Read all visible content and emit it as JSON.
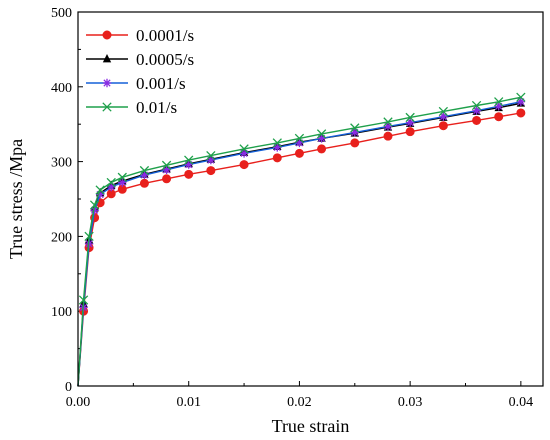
{
  "chart_data": {
    "type": "line",
    "title": "",
    "xlabel": "True strain",
    "ylabel": "True stress  /Mpa",
    "xlim": [
      0.0,
      0.042
    ],
    "ylim": [
      0,
      500
    ],
    "xticks": [
      0.0,
      0.01,
      0.02,
      0.03,
      0.04
    ],
    "xtick_labels": [
      "0.00",
      "0.01",
      "0.02",
      "0.03",
      "0.04"
    ],
    "yticks": [
      0,
      100,
      200,
      300,
      400,
      500
    ],
    "ytick_labels": [
      "0",
      "100",
      "200",
      "300",
      "400",
      "500"
    ],
    "grid": false,
    "legend_position": "top-left",
    "series": [
      {
        "name": "0.0001/s",
        "color": "#e8201c",
        "marker": "circle",
        "x": [
          0.0,
          0.0005,
          0.001,
          0.0015,
          0.002,
          0.003,
          0.004,
          0.006,
          0.008,
          0.01,
          0.012,
          0.015,
          0.018,
          0.02,
          0.022,
          0.025,
          0.028,
          0.03,
          0.033,
          0.036,
          0.038,
          0.04
        ],
        "values": [
          0,
          100,
          185,
          225,
          245,
          257,
          263,
          271,
          277,
          283,
          288,
          296,
          305,
          311,
          317,
          325,
          334,
          340,
          348,
          355,
          360,
          365
        ]
      },
      {
        "name": "0.0005/s",
        "color": "#000000",
        "marker": "triangle",
        "x": [
          0.0,
          0.0005,
          0.001,
          0.0015,
          0.002,
          0.003,
          0.004,
          0.006,
          0.008,
          0.01,
          0.012,
          0.015,
          0.018,
          0.02,
          0.022,
          0.025,
          0.028,
          0.03,
          0.033,
          0.036,
          0.038,
          0.04
        ],
        "values": [
          0,
          110,
          195,
          238,
          258,
          268,
          274,
          283,
          290,
          297,
          303,
          312,
          320,
          326,
          331,
          338,
          346,
          351,
          359,
          367,
          372,
          378
        ]
      },
      {
        "name": "0.001/s",
        "color": "#1560d8",
        "marker": "asterisk",
        "x": [
          0.0,
          0.0005,
          0.001,
          0.0015,
          0.002,
          0.003,
          0.004,
          0.006,
          0.008,
          0.01,
          0.012,
          0.015,
          0.018,
          0.02,
          0.022,
          0.025,
          0.028,
          0.03,
          0.033,
          0.036,
          0.038,
          0.04
        ],
        "values": [
          0,
          105,
          190,
          235,
          256,
          266,
          272,
          282,
          289,
          296,
          302,
          311,
          319,
          325,
          331,
          339,
          347,
          352,
          360,
          368,
          374,
          380
        ]
      },
      {
        "name": "0.01/s",
        "color": "#1fa04b",
        "marker": "cross",
        "x": [
          0.0,
          0.0005,
          0.001,
          0.0015,
          0.002,
          0.003,
          0.004,
          0.006,
          0.008,
          0.01,
          0.012,
          0.015,
          0.018,
          0.02,
          0.022,
          0.025,
          0.028,
          0.03,
          0.033,
          0.036,
          0.038,
          0.04
        ],
        "values": [
          0,
          115,
          200,
          242,
          262,
          272,
          279,
          288,
          295,
          302,
          308,
          317,
          325,
          331,
          337,
          345,
          353,
          359,
          367,
          375,
          380,
          386
        ]
      }
    ]
  },
  "series_marker_colors": {
    "0.001/s": "#8a2be2"
  }
}
